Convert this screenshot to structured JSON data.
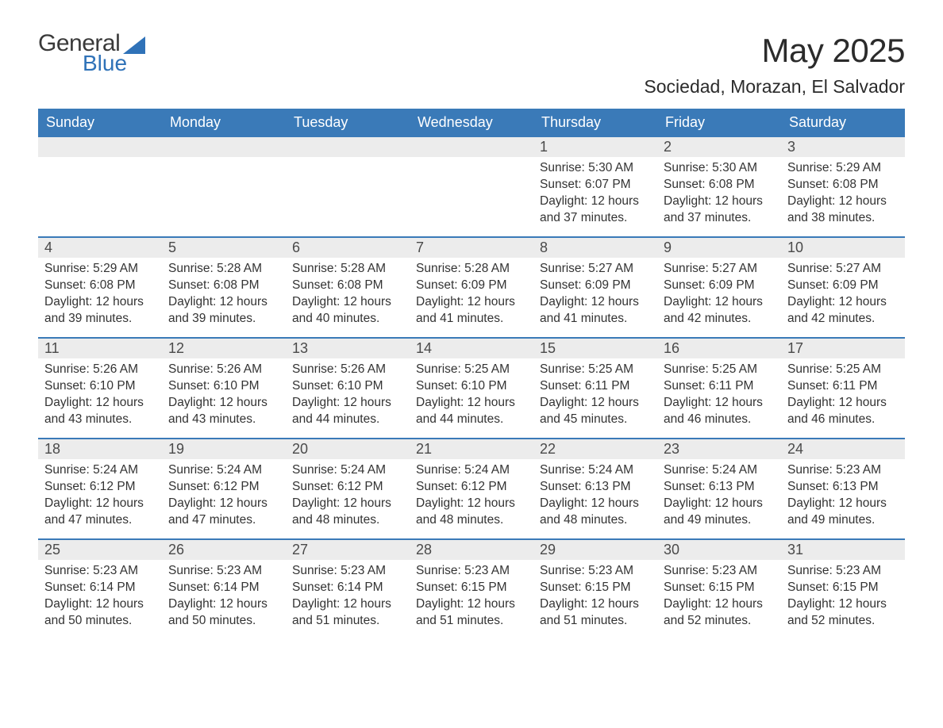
{
  "brand": {
    "word1": "General",
    "word2": "Blue",
    "word1_color": "#3a3a3a",
    "word2_color": "#2f72b8",
    "icon_color": "#2f72b8"
  },
  "header": {
    "month_title": "May 2025",
    "location": "Sociedad, Morazan, El Salvador"
  },
  "colors": {
    "header_bg": "#3a7ab8",
    "header_text": "#ffffff",
    "daynum_bg": "#ececec",
    "daynum_text": "#4a4a4a",
    "body_text": "#333333",
    "week_border": "#3a7ab8",
    "page_bg": "#ffffff"
  },
  "weekdays": [
    "Sunday",
    "Monday",
    "Tuesday",
    "Wednesday",
    "Thursday",
    "Friday",
    "Saturday"
  ],
  "weeks": [
    [
      {
        "day": "",
        "sunrise": "",
        "sunset": "",
        "daylight": ""
      },
      {
        "day": "",
        "sunrise": "",
        "sunset": "",
        "daylight": ""
      },
      {
        "day": "",
        "sunrise": "",
        "sunset": "",
        "daylight": ""
      },
      {
        "day": "",
        "sunrise": "",
        "sunset": "",
        "daylight": ""
      },
      {
        "day": "1",
        "sunrise": "Sunrise: 5:30 AM",
        "sunset": "Sunset: 6:07 PM",
        "daylight": "Daylight: 12 hours and 37 minutes."
      },
      {
        "day": "2",
        "sunrise": "Sunrise: 5:30 AM",
        "sunset": "Sunset: 6:08 PM",
        "daylight": "Daylight: 12 hours and 37 minutes."
      },
      {
        "day": "3",
        "sunrise": "Sunrise: 5:29 AM",
        "sunset": "Sunset: 6:08 PM",
        "daylight": "Daylight: 12 hours and 38 minutes."
      }
    ],
    [
      {
        "day": "4",
        "sunrise": "Sunrise: 5:29 AM",
        "sunset": "Sunset: 6:08 PM",
        "daylight": "Daylight: 12 hours and 39 minutes."
      },
      {
        "day": "5",
        "sunrise": "Sunrise: 5:28 AM",
        "sunset": "Sunset: 6:08 PM",
        "daylight": "Daylight: 12 hours and 39 minutes."
      },
      {
        "day": "6",
        "sunrise": "Sunrise: 5:28 AM",
        "sunset": "Sunset: 6:08 PM",
        "daylight": "Daylight: 12 hours and 40 minutes."
      },
      {
        "day": "7",
        "sunrise": "Sunrise: 5:28 AM",
        "sunset": "Sunset: 6:09 PM",
        "daylight": "Daylight: 12 hours and 41 minutes."
      },
      {
        "day": "8",
        "sunrise": "Sunrise: 5:27 AM",
        "sunset": "Sunset: 6:09 PM",
        "daylight": "Daylight: 12 hours and 41 minutes."
      },
      {
        "day": "9",
        "sunrise": "Sunrise: 5:27 AM",
        "sunset": "Sunset: 6:09 PM",
        "daylight": "Daylight: 12 hours and 42 minutes."
      },
      {
        "day": "10",
        "sunrise": "Sunrise: 5:27 AM",
        "sunset": "Sunset: 6:09 PM",
        "daylight": "Daylight: 12 hours and 42 minutes."
      }
    ],
    [
      {
        "day": "11",
        "sunrise": "Sunrise: 5:26 AM",
        "sunset": "Sunset: 6:10 PM",
        "daylight": "Daylight: 12 hours and 43 minutes."
      },
      {
        "day": "12",
        "sunrise": "Sunrise: 5:26 AM",
        "sunset": "Sunset: 6:10 PM",
        "daylight": "Daylight: 12 hours and 43 minutes."
      },
      {
        "day": "13",
        "sunrise": "Sunrise: 5:26 AM",
        "sunset": "Sunset: 6:10 PM",
        "daylight": "Daylight: 12 hours and 44 minutes."
      },
      {
        "day": "14",
        "sunrise": "Sunrise: 5:25 AM",
        "sunset": "Sunset: 6:10 PM",
        "daylight": "Daylight: 12 hours and 44 minutes."
      },
      {
        "day": "15",
        "sunrise": "Sunrise: 5:25 AM",
        "sunset": "Sunset: 6:11 PM",
        "daylight": "Daylight: 12 hours and 45 minutes."
      },
      {
        "day": "16",
        "sunrise": "Sunrise: 5:25 AM",
        "sunset": "Sunset: 6:11 PM",
        "daylight": "Daylight: 12 hours and 46 minutes."
      },
      {
        "day": "17",
        "sunrise": "Sunrise: 5:25 AM",
        "sunset": "Sunset: 6:11 PM",
        "daylight": "Daylight: 12 hours and 46 minutes."
      }
    ],
    [
      {
        "day": "18",
        "sunrise": "Sunrise: 5:24 AM",
        "sunset": "Sunset: 6:12 PM",
        "daylight": "Daylight: 12 hours and 47 minutes."
      },
      {
        "day": "19",
        "sunrise": "Sunrise: 5:24 AM",
        "sunset": "Sunset: 6:12 PM",
        "daylight": "Daylight: 12 hours and 47 minutes."
      },
      {
        "day": "20",
        "sunrise": "Sunrise: 5:24 AM",
        "sunset": "Sunset: 6:12 PM",
        "daylight": "Daylight: 12 hours and 48 minutes."
      },
      {
        "day": "21",
        "sunrise": "Sunrise: 5:24 AM",
        "sunset": "Sunset: 6:12 PM",
        "daylight": "Daylight: 12 hours and 48 minutes."
      },
      {
        "day": "22",
        "sunrise": "Sunrise: 5:24 AM",
        "sunset": "Sunset: 6:13 PM",
        "daylight": "Daylight: 12 hours and 48 minutes."
      },
      {
        "day": "23",
        "sunrise": "Sunrise: 5:24 AM",
        "sunset": "Sunset: 6:13 PM",
        "daylight": "Daylight: 12 hours and 49 minutes."
      },
      {
        "day": "24",
        "sunrise": "Sunrise: 5:23 AM",
        "sunset": "Sunset: 6:13 PM",
        "daylight": "Daylight: 12 hours and 49 minutes."
      }
    ],
    [
      {
        "day": "25",
        "sunrise": "Sunrise: 5:23 AM",
        "sunset": "Sunset: 6:14 PM",
        "daylight": "Daylight: 12 hours and 50 minutes."
      },
      {
        "day": "26",
        "sunrise": "Sunrise: 5:23 AM",
        "sunset": "Sunset: 6:14 PM",
        "daylight": "Daylight: 12 hours and 50 minutes."
      },
      {
        "day": "27",
        "sunrise": "Sunrise: 5:23 AM",
        "sunset": "Sunset: 6:14 PM",
        "daylight": "Daylight: 12 hours and 51 minutes."
      },
      {
        "day": "28",
        "sunrise": "Sunrise: 5:23 AM",
        "sunset": "Sunset: 6:15 PM",
        "daylight": "Daylight: 12 hours and 51 minutes."
      },
      {
        "day": "29",
        "sunrise": "Sunrise: 5:23 AM",
        "sunset": "Sunset: 6:15 PM",
        "daylight": "Daylight: 12 hours and 51 minutes."
      },
      {
        "day": "30",
        "sunrise": "Sunrise: 5:23 AM",
        "sunset": "Sunset: 6:15 PM",
        "daylight": "Daylight: 12 hours and 52 minutes."
      },
      {
        "day": "31",
        "sunrise": "Sunrise: 5:23 AM",
        "sunset": "Sunset: 6:15 PM",
        "daylight": "Daylight: 12 hours and 52 minutes."
      }
    ]
  ]
}
